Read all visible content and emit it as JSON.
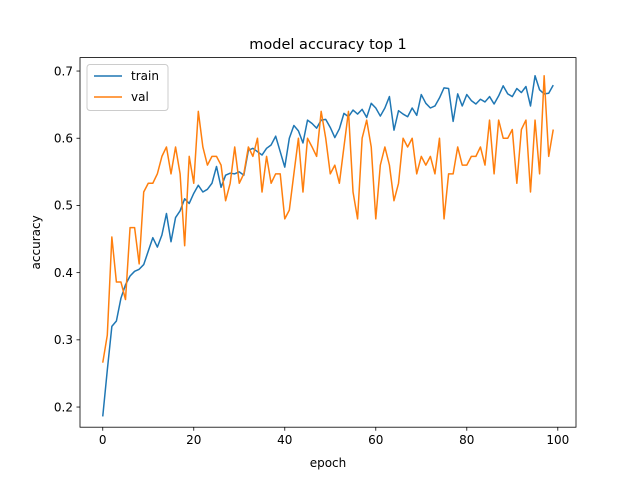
{
  "chart_data": {
    "type": "line",
    "title": "model accuracy top 1",
    "xlabel": "epoch",
    "ylabel": "accuracy",
    "xlim": [
      -5,
      104
    ],
    "ylim": [
      0.17,
      0.72
    ],
    "xticks": [
      "0",
      "20",
      "40",
      "60",
      "80",
      "100"
    ],
    "yticks": [
      "0.2",
      "0.3",
      "0.4",
      "0.5",
      "0.6",
      "0.7"
    ],
    "grid": false,
    "legend": "top-left",
    "series": [
      {
        "name": "train",
        "color": "#1f77b4",
        "values": [
          0.186,
          0.255,
          0.32,
          0.328,
          0.362,
          0.382,
          0.395,
          0.402,
          0.405,
          0.412,
          0.432,
          0.452,
          0.438,
          0.456,
          0.488,
          0.446,
          0.482,
          0.492,
          0.51,
          0.503,
          0.518,
          0.53,
          0.52,
          0.524,
          0.533,
          0.558,
          0.527,
          0.545,
          0.548,
          0.547,
          0.55,
          0.545,
          0.582,
          0.585,
          0.58,
          0.575,
          0.585,
          0.59,
          0.603,
          0.58,
          0.557,
          0.6,
          0.619,
          0.611,
          0.593,
          0.627,
          0.622,
          0.615,
          0.627,
          0.628,
          0.616,
          0.601,
          0.614,
          0.637,
          0.632,
          0.642,
          0.636,
          0.643,
          0.631,
          0.652,
          0.645,
          0.633,
          0.645,
          0.662,
          0.612,
          0.641,
          0.636,
          0.632,
          0.645,
          0.634,
          0.665,
          0.652,
          0.645,
          0.648,
          0.66,
          0.675,
          0.674,
          0.625,
          0.666,
          0.648,
          0.665,
          0.656,
          0.651,
          0.658,
          0.654,
          0.662,
          0.651,
          0.663,
          0.678,
          0.666,
          0.662,
          0.674,
          0.668,
          0.677,
          0.648,
          0.693,
          0.672,
          0.666,
          0.667,
          0.679
        ]
      },
      {
        "name": "val",
        "color": "#ff7f0e",
        "values": [
          0.266,
          0.307,
          0.453,
          0.386,
          0.386,
          0.36,
          0.467,
          0.467,
          0.413,
          0.52,
          0.533,
          0.533,
          0.547,
          0.573,
          0.587,
          0.547,
          0.587,
          0.547,
          0.44,
          0.573,
          0.533,
          0.64,
          0.587,
          0.56,
          0.573,
          0.573,
          0.56,
          0.507,
          0.533,
          0.587,
          0.533,
          0.547,
          0.587,
          0.573,
          0.6,
          0.52,
          0.573,
          0.533,
          0.547,
          0.547,
          0.48,
          0.493,
          0.547,
          0.6,
          0.52,
          0.6,
          0.587,
          0.573,
          0.64,
          0.6,
          0.547,
          0.56,
          0.533,
          0.587,
          0.64,
          0.52,
          0.48,
          0.6,
          0.627,
          0.587,
          0.48,
          0.56,
          0.587,
          0.56,
          0.507,
          0.533,
          0.6,
          0.587,
          0.6,
          0.547,
          0.573,
          0.56,
          0.573,
          0.547,
          0.6,
          0.48,
          0.547,
          0.547,
          0.587,
          0.56,
          0.56,
          0.573,
          0.573,
          0.587,
          0.56,
          0.627,
          0.547,
          0.627,
          0.6,
          0.6,
          0.613,
          0.533,
          0.613,
          0.627,
          0.52,
          0.627,
          0.547,
          0.693,
          0.573,
          0.613
        ]
      }
    ]
  }
}
